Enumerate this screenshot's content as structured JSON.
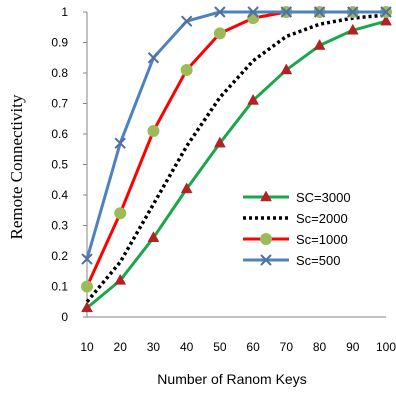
{
  "chart_data": {
    "type": "line",
    "title": "",
    "xlabel": "Number of Ranom Keys",
    "ylabel": "Remote Connectivity",
    "x": [
      10,
      20,
      30,
      40,
      50,
      60,
      70,
      80,
      90,
      100
    ],
    "x_tick_labels": [
      "10",
      "20",
      "30",
      "40",
      "50",
      "60",
      "70",
      "80",
      "90",
      "100"
    ],
    "y_tick_labels": [
      "0",
      "0.1",
      "0.2",
      "0.3",
      "0.4",
      "0.5",
      "0.6",
      "0.7",
      "0.8",
      "0.9",
      "1"
    ],
    "xlim": [
      10,
      100
    ],
    "ylim": [
      0,
      1
    ],
    "grid": false,
    "legend_position": "center-right",
    "series": [
      {
        "name": "SC=3000",
        "color": "#1aa64a",
        "line_style": "solid",
        "marker": "triangle",
        "marker_color": "#b22222",
        "values": [
          0.03,
          0.12,
          0.26,
          0.42,
          0.57,
          0.71,
          0.81,
          0.89,
          0.94,
          0.97
        ]
      },
      {
        "name": "Sc=2000",
        "color": "#000000",
        "line_style": "dotted",
        "marker": "none",
        "values": [
          0.05,
          0.18,
          0.37,
          0.56,
          0.72,
          0.84,
          0.92,
          0.96,
          0.98,
          0.99
        ]
      },
      {
        "name": "Sc=1000",
        "color": "#ff0000",
        "line_style": "solid",
        "marker": "circle",
        "marker_color": "#9bbb59",
        "values": [
          0.1,
          0.34,
          0.61,
          0.81,
          0.93,
          0.98,
          1.0,
          1.0,
          1.0,
          1.0
        ]
      },
      {
        "name": "Sc=500",
        "color": "#4f81bd",
        "line_style": "solid",
        "marker": "x",
        "marker_color": "#4f6fa5",
        "values": [
          0.19,
          0.57,
          0.85,
          0.97,
          1.0,
          1.0,
          1.0,
          1.0,
          1.0,
          1.0
        ]
      }
    ]
  }
}
